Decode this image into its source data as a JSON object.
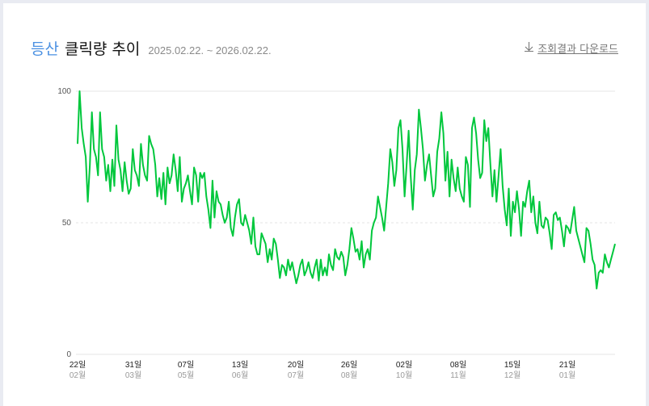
{
  "header": {
    "keyword": "등산",
    "title": "클릭량 추이",
    "date_range": "2025.02.22. ~ 2026.02.22."
  },
  "download": {
    "icon": "download-arrow-icon",
    "label": "조회결과 다운로드"
  },
  "colors": {
    "line": "#00c73c",
    "keyword": "#4a90e2",
    "grid": "#e5e5e5"
  },
  "chart_data": {
    "type": "line",
    "title": "등산 클릭량 추이",
    "subtitle": "2025.02.22. ~ 2026.02.22.",
    "xlabel": "",
    "ylabel": "",
    "ylim": [
      0,
      100
    ],
    "yticks": [
      0,
      50,
      100
    ],
    "grid": "horizontal dashed at 50, solid at 100 and 0",
    "legend": "none",
    "x_ticks": [
      {
        "day": "22일",
        "month": "02월"
      },
      {
        "day": "31일",
        "month": "03월"
      },
      {
        "day": "07일",
        "month": "05월"
      },
      {
        "day": "13일",
        "month": "06월"
      },
      {
        "day": "20일",
        "month": "07월"
      },
      {
        "day": "26일",
        "month": "08월"
      },
      {
        "day": "02일",
        "month": "10월"
      },
      {
        "day": "08일",
        "month": "11월"
      },
      {
        "day": "15일",
        "month": "12월"
      },
      {
        "day": "21일",
        "month": "01월"
      }
    ],
    "series": [
      {
        "name": "등산",
        "values": [
          80,
          100,
          86,
          80,
          75,
          58,
          72,
          92,
          78,
          75,
          68,
          92,
          78,
          75,
          66,
          72,
          62,
          74,
          64,
          87,
          74,
          70,
          62,
          73,
          66,
          61,
          63,
          78,
          70,
          68,
          64,
          80,
          72,
          68,
          66,
          83,
          80,
          78,
          72,
          60,
          67,
          59,
          69,
          57,
          71,
          65,
          68,
          76,
          70,
          62,
          75,
          58,
          63,
          65,
          68,
          62,
          57,
          71,
          68,
          58,
          69,
          67,
          69,
          60,
          55,
          48,
          66,
          52,
          62,
          58,
          57,
          53,
          50,
          52,
          58,
          48,
          45,
          52,
          57,
          59,
          50,
          49,
          53,
          50,
          47,
          42,
          52,
          41,
          38,
          38,
          46,
          44,
          42,
          35,
          40,
          36,
          44,
          42,
          36,
          29,
          34,
          33,
          30,
          36,
          32,
          35,
          31,
          27,
          30,
          34,
          36,
          30,
          32,
          35,
          31,
          29,
          33,
          36,
          28,
          36,
          30,
          33,
          30,
          38,
          34,
          32,
          40,
          37,
          36,
          39,
          37,
          30,
          34,
          40,
          48,
          44,
          39,
          40,
          36,
          43,
          33,
          38,
          40,
          36,
          47,
          50,
          52,
          60,
          56,
          52,
          47,
          56,
          65,
          78,
          73,
          64,
          70,
          86,
          89,
          78,
          60,
          72,
          85,
          68,
          55,
          70,
          76,
          93,
          86,
          78,
          66,
          72,
          76,
          68,
          60,
          63,
          77,
          82,
          92,
          84,
          66,
          77,
          60,
          74,
          67,
          62,
          71,
          63,
          60,
          58,
          75,
          72,
          56,
          86,
          90,
          84,
          74,
          67,
          69,
          89,
          81,
          86,
          72,
          60,
          70,
          58,
          68,
          78,
          64,
          55,
          49,
          63,
          45,
          58,
          54,
          62,
          55,
          45,
          58,
          56,
          62,
          66,
          54,
          60,
          50,
          46,
          58,
          49,
          48,
          52,
          51,
          46,
          40,
          53,
          54,
          51,
          52,
          47,
          41,
          49,
          48,
          46,
          51,
          56,
          47,
          44,
          41,
          38,
          35,
          48,
          47,
          42,
          36,
          34,
          25,
          31,
          32,
          31,
          38,
          35,
          33,
          36,
          39,
          42
        ]
      }
    ]
  }
}
